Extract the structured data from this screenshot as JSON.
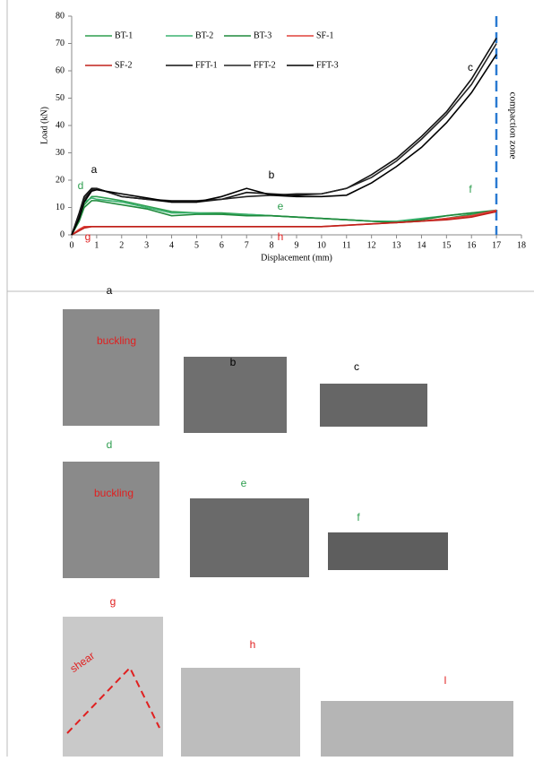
{
  "chart_data": {
    "type": "line",
    "x_label": "Displacement (mm)",
    "y_label": "Load (kN)",
    "xlim": [
      0,
      18
    ],
    "xticks": [
      0,
      1,
      2,
      3,
      4,
      5,
      6,
      7,
      8,
      9,
      10,
      11,
      12,
      13,
      14,
      15,
      16,
      17,
      18
    ],
    "ylim": [
      0,
      80
    ],
    "yticks": [
      0,
      10,
      20,
      30,
      40,
      50,
      60,
      70,
      80
    ],
    "x": [
      0,
      0.3,
      0.5,
      0.8,
      1,
      2,
      3,
      4,
      5,
      6,
      7,
      8,
      9,
      10,
      11,
      12,
      13,
      14,
      15,
      16,
      17
    ],
    "series": [
      {
        "name": "BT-1",
        "color": "#2e9e4f",
        "values": [
          0,
          6,
          11,
          14,
          14,
          12.5,
          10.5,
          8.5,
          8,
          8,
          7.5,
          7,
          6.5,
          6,
          5.5,
          5,
          4.5,
          5,
          6,
          7.5,
          8.5
        ]
      },
      {
        "name": "BT-2",
        "color": "#3cb371",
        "values": [
          0,
          7,
          12,
          13.5,
          13,
          12,
          10,
          8,
          8,
          7.5,
          7.5,
          7,
          6.5,
          6,
          5.5,
          5,
          5,
          6,
          7,
          8,
          8.5
        ]
      },
      {
        "name": "BT-3",
        "color": "#1f8a3c",
        "values": [
          0,
          5,
          10,
          12.5,
          12.5,
          11,
          9.5,
          7,
          7.5,
          7.5,
          7,
          7,
          6.5,
          6,
          5.5,
          5,
          4.5,
          5.5,
          7,
          8,
          9
        ]
      },
      {
        "name": "SF-1",
        "color": "#e0403a",
        "values": [
          0,
          2,
          3,
          3,
          3,
          3,
          3,
          3,
          3,
          3,
          3,
          3,
          3,
          3,
          3.5,
          4,
          4.5,
          5,
          6,
          7,
          9
        ]
      },
      {
        "name": "SF-2",
        "color": "#c0201a",
        "values": [
          0,
          1.5,
          2.5,
          3,
          3,
          3,
          3,
          3,
          3,
          3,
          3,
          3,
          3,
          3,
          3.5,
          4,
          4.5,
          5,
          5.5,
          6.5,
          8.5
        ]
      },
      {
        "name": "FFT-1",
        "color": "#111111",
        "values": [
          0,
          8,
          14,
          17,
          17,
          14,
          13,
          12,
          12,
          13,
          15.5,
          15,
          14.5,
          15,
          17,
          22,
          28,
          36,
          45,
          57,
          72
        ]
      },
      {
        "name": "FFT-2",
        "color": "#222222",
        "values": [
          0,
          7,
          13,
          16.5,
          17,
          14,
          13,
          12.5,
          12.5,
          13,
          14,
          14.5,
          15,
          15,
          17,
          21,
          27,
          35,
          44,
          55,
          70
        ]
      },
      {
        "name": "FFT-3",
        "color": "#000000",
        "values": [
          0,
          6,
          12,
          16,
          16.5,
          15,
          13.5,
          12,
          12,
          14,
          17,
          14.5,
          14,
          14,
          14.5,
          19,
          25,
          32,
          41,
          52,
          66
        ]
      }
    ],
    "annotations": [
      "a",
      "b",
      "c",
      "d",
      "e",
      "f",
      "g",
      "h",
      "compaction zone"
    ]
  },
  "photos": [
    "a",
    "b",
    "c",
    "d",
    "e",
    "f",
    "g",
    "h",
    "l"
  ],
  "photo_notes": [
    "buckling",
    "buckling",
    "shear"
  ]
}
